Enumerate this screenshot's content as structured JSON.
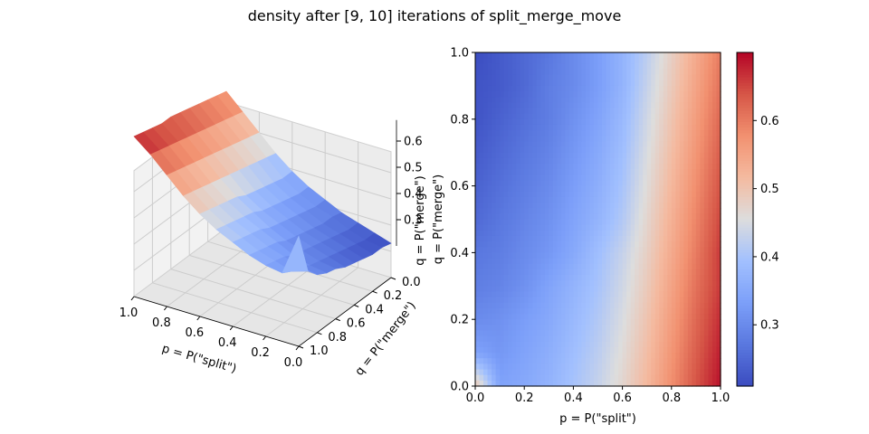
{
  "figure": {
    "title": "density after [9, 10] iterations of split_merge_move"
  },
  "chart_data": [
    {
      "type": "surface",
      "xlabel": "p = P(\"split\")",
      "ylabel": "q = P(\"merge\")",
      "zticks": [
        "0.3",
        "0.4",
        "0.5",
        "0.6"
      ],
      "xticks": [
        "0.0",
        "0.2",
        "0.4",
        "0.6",
        "0.8",
        "1.0"
      ],
      "yticks": [
        "0.0",
        "0.2",
        "0.4",
        "0.6",
        "0.8",
        "1.0"
      ],
      "xlim": [
        0,
        1
      ],
      "ylim": [
        0,
        1
      ],
      "zlim": [
        0.21,
        0.7
      ],
      "colormap": "coolwarm",
      "grid": "on"
    },
    {
      "type": "heatmap",
      "xlabel": "p = P(\"split\")",
      "ylabel": "q = P(\"merge\")",
      "xticks": [
        "0.0",
        "0.2",
        "0.4",
        "0.6",
        "0.8",
        "1.0"
      ],
      "yticks": [
        "0.0",
        "0.2",
        "0.4",
        "0.6",
        "0.8",
        "1.0"
      ],
      "xlim": [
        0,
        1
      ],
      "ylim": [
        0,
        1
      ],
      "colormap": "coolwarm",
      "colorbar_ticks": [
        "0.3",
        "0.4",
        "0.5",
        "0.6"
      ],
      "colorbar_range": [
        0.21,
        0.7
      ],
      "p_grid": [
        0.0,
        0.1,
        0.2,
        0.3,
        0.4,
        0.5,
        0.6,
        0.7,
        0.8,
        0.9,
        1.0
      ],
      "q_grid": [
        0.0,
        0.1,
        0.2,
        0.3,
        0.4,
        0.5,
        0.6,
        0.7,
        0.8,
        0.9,
        1.0
      ],
      "z_rows_by_q": [
        [
          0.5,
          0.34,
          0.35,
          0.37,
          0.4,
          0.43,
          0.47,
          0.52,
          0.58,
          0.64,
          0.69
        ],
        [
          0.34,
          0.32,
          0.34,
          0.36,
          0.39,
          0.42,
          0.46,
          0.51,
          0.57,
          0.63,
          0.68
        ],
        [
          0.3,
          0.31,
          0.33,
          0.35,
          0.38,
          0.41,
          0.45,
          0.5,
          0.56,
          0.62,
          0.67
        ],
        [
          0.28,
          0.29,
          0.31,
          0.34,
          0.37,
          0.4,
          0.44,
          0.49,
          0.55,
          0.61,
          0.66
        ],
        [
          0.27,
          0.28,
          0.3,
          0.32,
          0.35,
          0.39,
          0.43,
          0.48,
          0.54,
          0.6,
          0.66
        ],
        [
          0.25,
          0.27,
          0.29,
          0.31,
          0.34,
          0.37,
          0.41,
          0.47,
          0.53,
          0.59,
          0.65
        ],
        [
          0.24,
          0.26,
          0.28,
          0.3,
          0.33,
          0.36,
          0.4,
          0.46,
          0.52,
          0.58,
          0.64
        ],
        [
          0.23,
          0.25,
          0.27,
          0.29,
          0.32,
          0.35,
          0.39,
          0.45,
          0.51,
          0.57,
          0.63
        ],
        [
          0.22,
          0.24,
          0.26,
          0.28,
          0.31,
          0.34,
          0.38,
          0.44,
          0.5,
          0.56,
          0.62
        ],
        [
          0.22,
          0.23,
          0.25,
          0.28,
          0.3,
          0.33,
          0.37,
          0.43,
          0.49,
          0.55,
          0.61
        ],
        [
          0.21,
          0.23,
          0.25,
          0.27,
          0.3,
          0.33,
          0.37,
          0.42,
          0.48,
          0.54,
          0.6
        ]
      ]
    }
  ]
}
